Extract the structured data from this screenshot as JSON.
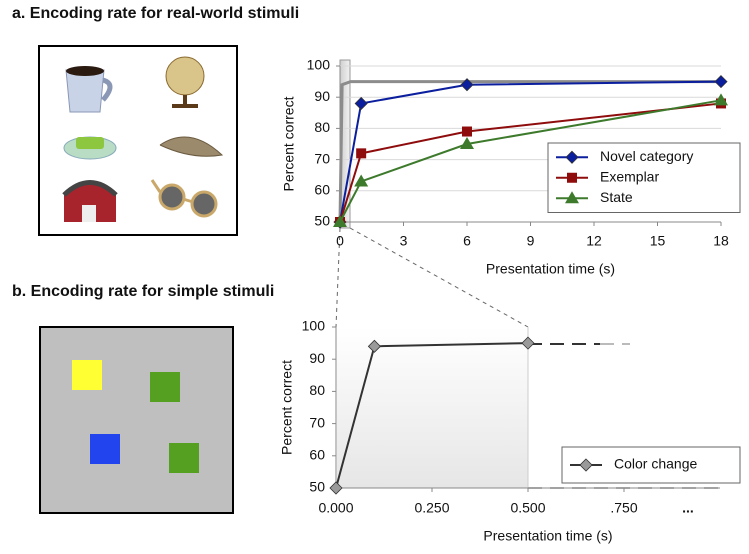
{
  "chart_data": [
    {
      "type": "line",
      "title": "a. Encoding rate for real-world stimuli",
      "xlabel": "Presentation time (s)",
      "ylabel": "Percent correct",
      "xlim": [
        0,
        18
      ],
      "xticks": [
        0,
        3,
        6,
        9,
        12,
        15,
        18
      ],
      "ylim": [
        50,
        100
      ],
      "yticks": [
        50,
        60,
        70,
        80,
        90,
        100
      ],
      "grid": true,
      "series": [
        {
          "color": "#8c8c8c",
          "x": [
            0,
            0.1,
            0.5,
            18
          ],
          "values": [
            50,
            94,
            95,
            95
          ]
        },
        {
          "name": "Novel category",
          "color": "#0b1f9e",
          "marker": "diamond",
          "x": [
            0,
            1,
            6,
            18
          ],
          "values": [
            50,
            88,
            94,
            95
          ]
        },
        {
          "name": "Exemplar",
          "color": "#8e0c0c",
          "marker": "square",
          "x": [
            0,
            1,
            6,
            18
          ],
          "values": [
            50,
            72,
            79,
            88
          ]
        },
        {
          "name": "State",
          "color": "#3d7a2c",
          "marker": "triangle",
          "x": [
            0,
            1,
            6,
            18
          ],
          "values": [
            50,
            63,
            75,
            89
          ]
        }
      ]
    },
    {
      "type": "line",
      "title": "b. Encoding rate for simple stimuli",
      "xlabel": "Presentation time (s)",
      "ylabel": "Percent correct",
      "xlim": [
        0,
        1
      ],
      "xticks": [
        {
          "value": 0,
          "label": "0.000"
        },
        {
          "value": 0.25,
          "label": "0.250"
        },
        {
          "value": 0.5,
          "label": "0.500"
        },
        {
          "value": 0.75,
          "label": ".750"
        }
      ],
      "annotation": "...",
      "ylim": [
        50,
        100
      ],
      "yticks": [
        50,
        60,
        70,
        80,
        90,
        100
      ],
      "grid": false,
      "series": [
        {
          "name": "Color change",
          "color": "#333333",
          "marker": "diamond",
          "marker_color": "#9a9a9a",
          "x": [
            0,
            0.1,
            0.5
          ],
          "values": [
            50,
            94,
            95
          ]
        }
      ]
    }
  ]
}
